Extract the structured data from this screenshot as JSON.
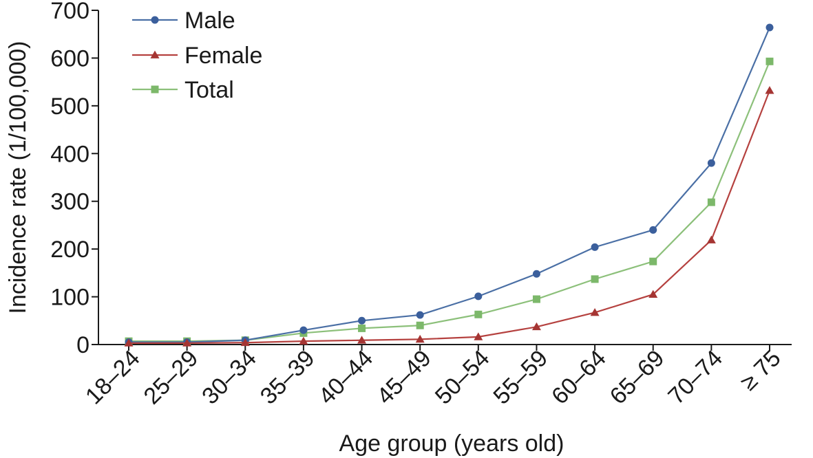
{
  "chart_data": {
    "type": "line",
    "title": "",
    "xlabel": "Age group (years old)",
    "ylabel": "Incidence rate (1/100,000)",
    "categories": [
      "18–24",
      "25–29",
      "30–34",
      "35–39",
      "40–44",
      "45–49",
      "50–54",
      "55–59",
      "60–64",
      "65–69",
      "70–74",
      "≥ 75"
    ],
    "yticks": [
      0,
      100,
      200,
      300,
      400,
      500,
      600,
      700
    ],
    "ylim": [
      0,
      700
    ],
    "grid": false,
    "legend_position": "top-left",
    "series": [
      {
        "name": "Male",
        "marker": "circle",
        "color": "#4a6fa5",
        "marker_color": "#3b5f9c",
        "values": [
          5,
          5,
          9,
          30,
          50,
          62,
          101,
          148,
          204,
          240,
          380,
          664
        ]
      },
      {
        "name": "Female",
        "marker": "triangle",
        "color": "#b5413f",
        "marker_color": "#a53533",
        "values": [
          3,
          3,
          4,
          7,
          9,
          11,
          16,
          37,
          67,
          105,
          219,
          532
        ]
      },
      {
        "name": "Total",
        "marker": "square",
        "color": "#8cc07a",
        "marker_color": "#7cb86a",
        "values": [
          7,
          7,
          9,
          24,
          34,
          40,
          63,
          95,
          137,
          174,
          298,
          593
        ]
      }
    ]
  }
}
